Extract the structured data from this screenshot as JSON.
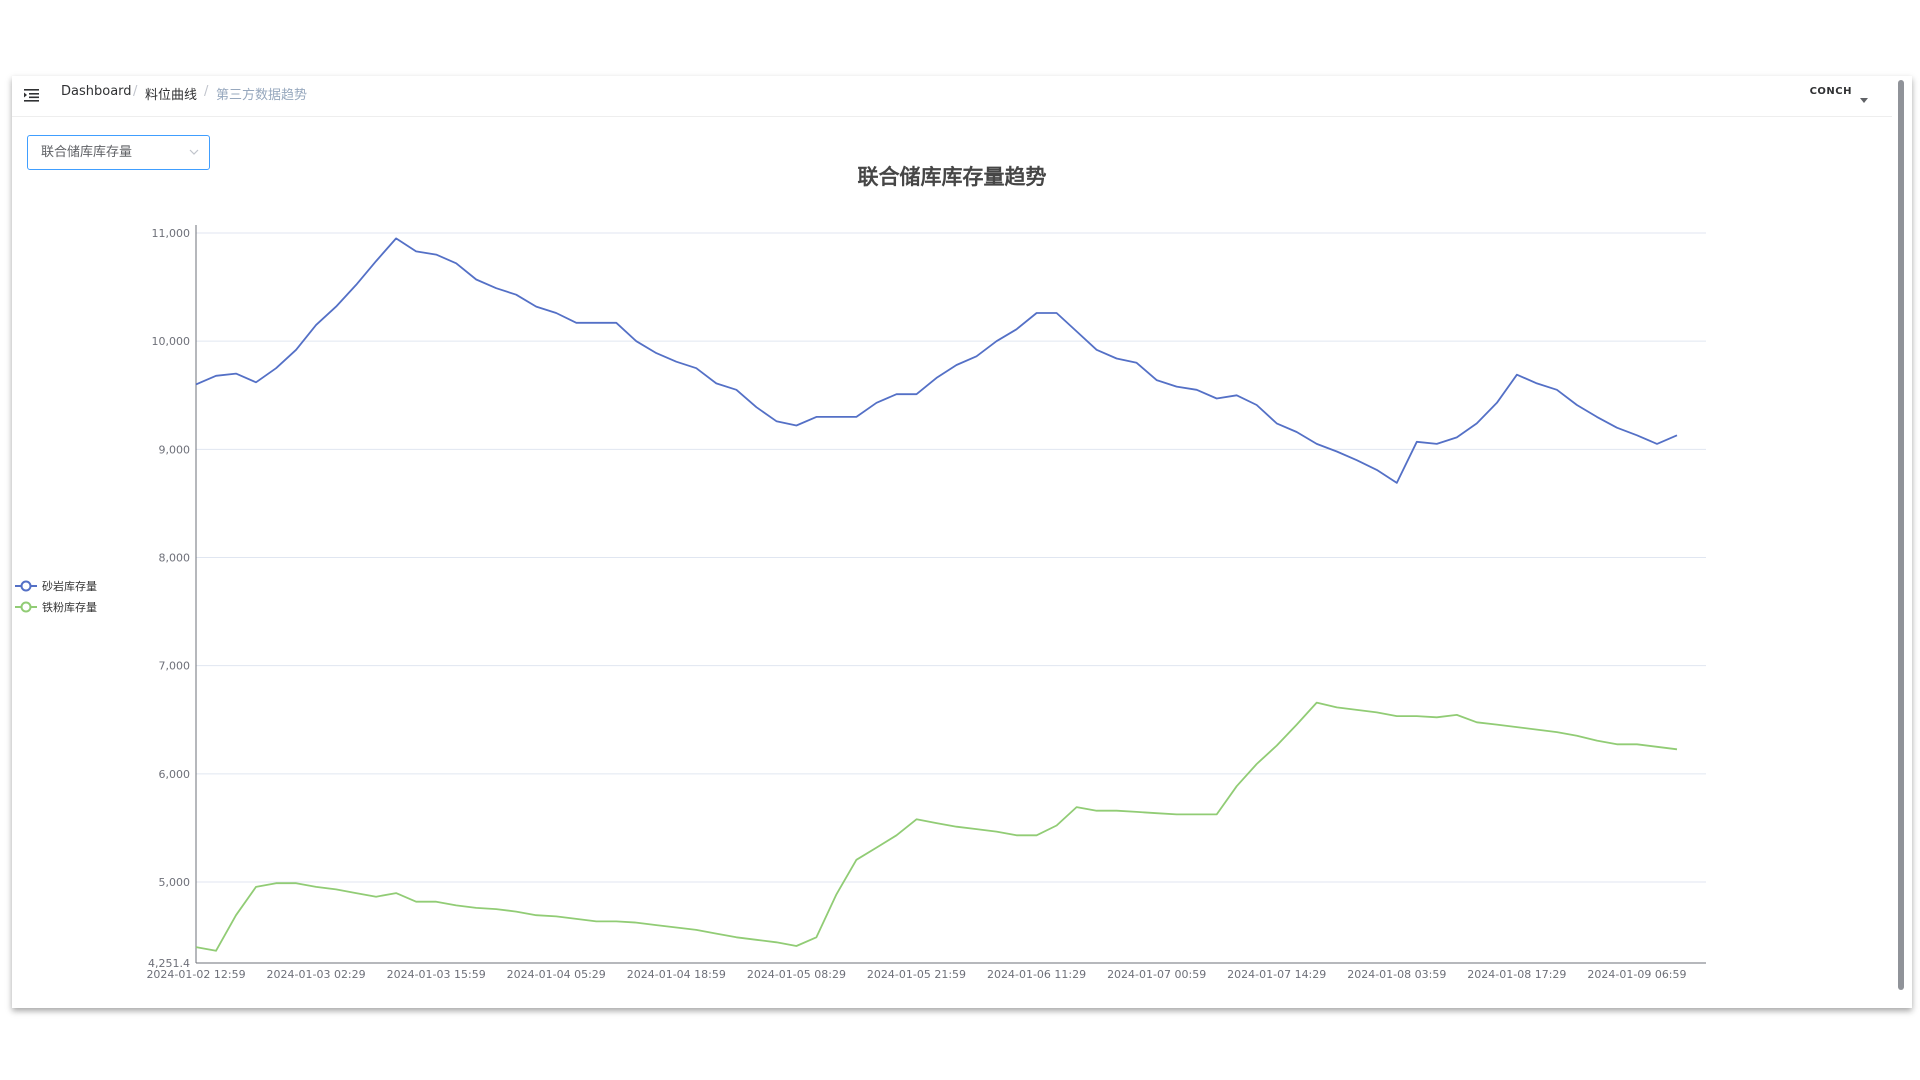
{
  "header": {
    "breadcrumb": [
      "Dashboard",
      "料位曲线",
      "第三方数据趋势"
    ],
    "separator": "/",
    "logo": "CONCH"
  },
  "selector": {
    "value": "联合储库库存量"
  },
  "chart_data": {
    "type": "line",
    "title": "联合储库库存量趋势",
    "categories": [
      "2024-01-02 12:59",
      null,
      null,
      null,
      null,
      null,
      "2024-01-03 02:29",
      null,
      null,
      null,
      null,
      null,
      "2024-01-03 15:59",
      null,
      null,
      null,
      null,
      null,
      "2024-01-04 05:29",
      null,
      null,
      null,
      null,
      null,
      "2024-01-04 18:59",
      null,
      null,
      null,
      null,
      null,
      "2024-01-05 08:29",
      null,
      null,
      null,
      null,
      null,
      "2024-01-05 21:59",
      null,
      null,
      null,
      null,
      null,
      "2024-01-06 11:29",
      null,
      null,
      null,
      null,
      null,
      "2024-01-07 00:59",
      null,
      null,
      null,
      null,
      null,
      "2024-01-07 14:29",
      null,
      null,
      null,
      null,
      null,
      "2024-01-08 03:59",
      null,
      null,
      null,
      null,
      null,
      "2024-01-08 17:29",
      null,
      null,
      null,
      null,
      null,
      "2024-01-09 06:59",
      null,
      null
    ],
    "series": [
      {
        "name": "砂岩库存量",
        "color": "#5470c6",
        "values": [
          9600,
          9680,
          9700,
          9620,
          9750,
          9920,
          10150,
          10320,
          10520,
          10740,
          10950,
          10830,
          10800,
          10720,
          10570,
          10490,
          10430,
          10320,
          10260,
          10170,
          10170,
          10170,
          10000,
          9890,
          9810,
          9750,
          9610,
          9550,
          9390,
          9260,
          9220,
          9300,
          9300,
          9300,
          9430,
          9510,
          9510,
          9660,
          9780,
          9860,
          10000,
          10110,
          10260,
          10260,
          10090,
          9920,
          9840,
          9800,
          9640,
          9580,
          9550,
          9470,
          9500,
          9410,
          9240,
          9160,
          9050,
          8980,
          8900,
          8810,
          8690,
          9070,
          9050,
          9110,
          9240,
          9430,
          9690,
          9610,
          9550,
          9410,
          9300,
          9200,
          9130,
          9050,
          9130
        ]
      },
      {
        "name": "铁粉库存量",
        "color": "#91cc75",
        "values": [
          4398,
          4364,
          4693,
          4955,
          4989,
          4989,
          4955,
          4932,
          4898,
          4864,
          4898,
          4818,
          4818,
          4784,
          4761,
          4750,
          4727,
          4693,
          4682,
          4659,
          4636,
          4636,
          4625,
          4602,
          4580,
          4557,
          4523,
          4489,
          4466,
          4443,
          4409,
          4489,
          4886,
          5205,
          5318,
          5432,
          5580,
          5545,
          5511,
          5489,
          5466,
          5432,
          5432,
          5523,
          5693,
          5659,
          5659,
          5648,
          5636,
          5625,
          5625,
          5625,
          5886,
          6091,
          6261,
          6455,
          6659,
          6614,
          6591,
          6568,
          6534,
          6534,
          6523,
          6545,
          6477,
          6455,
          6432,
          6409,
          6386,
          6352,
          6307,
          6273,
          6273,
          6250,
          6227
        ]
      }
    ],
    "ylim": [
      4251.4,
      11000
    ],
    "yticks": [
      {
        "value": 4251.4,
        "label": "4,251.4"
      },
      {
        "value": 5000,
        "label": "5,000"
      },
      {
        "value": 6000,
        "label": "6,000"
      },
      {
        "value": 7000,
        "label": "7,000"
      },
      {
        "value": 8000,
        "label": "8,000"
      },
      {
        "value": 9000,
        "label": "9,000"
      },
      {
        "value": 10000,
        "label": "10,000"
      },
      {
        "value": 11000,
        "label": "11,000"
      }
    ],
    "grid": true,
    "legend": "left"
  }
}
